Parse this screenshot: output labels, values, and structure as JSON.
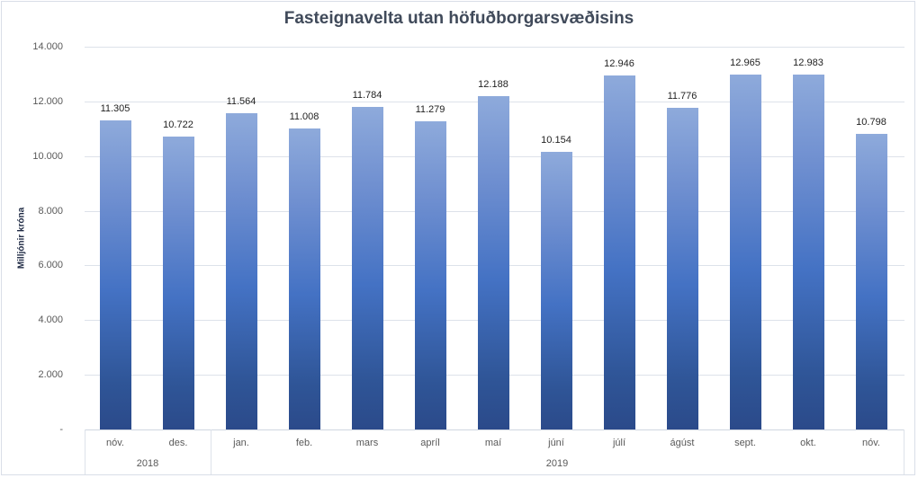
{
  "chart_data": {
    "type": "bar",
    "title": "Fasteignavelta utan höfuðborgarsvæðisins",
    "xlabel": "",
    "ylabel": "Milljónir króna",
    "ylim": [
      0,
      14000
    ],
    "yticks": [
      "-",
      "2.000",
      "4.000",
      "6.000",
      "8.000",
      "10.000",
      "12.000",
      "14.000"
    ],
    "ytick_values": [
      0,
      2000,
      4000,
      6000,
      8000,
      10000,
      12000,
      14000
    ],
    "grid": true,
    "legend": null,
    "categories": [
      "nóv.",
      "des.",
      "jan.",
      "feb.",
      "mars",
      "apríl",
      "maí",
      "júní",
      "júlí",
      "ágúst",
      "sept.",
      "okt.",
      "nóv."
    ],
    "category_groups": [
      {
        "label": "2018",
        "span": 2
      },
      {
        "label": "2019",
        "span": 11
      }
    ],
    "values": [
      11305,
      10722,
      11564,
      11008,
      11784,
      11279,
      12188,
      10154,
      12946,
      11776,
      12965,
      12983,
      10798
    ],
    "value_labels": [
      "11.305",
      "10.722",
      "11.564",
      "11.008",
      "11.784",
      "11.279",
      "12.188",
      "10.154",
      "12.946",
      "11.776",
      "12.965",
      "12.983",
      "10.798"
    ],
    "colors": {
      "bar_top": "#8eaadb",
      "bar_mid": "#4472c4",
      "bar_bottom": "#2b4a8a",
      "grid": "#dde2ea",
      "title": "#404a5a"
    }
  }
}
